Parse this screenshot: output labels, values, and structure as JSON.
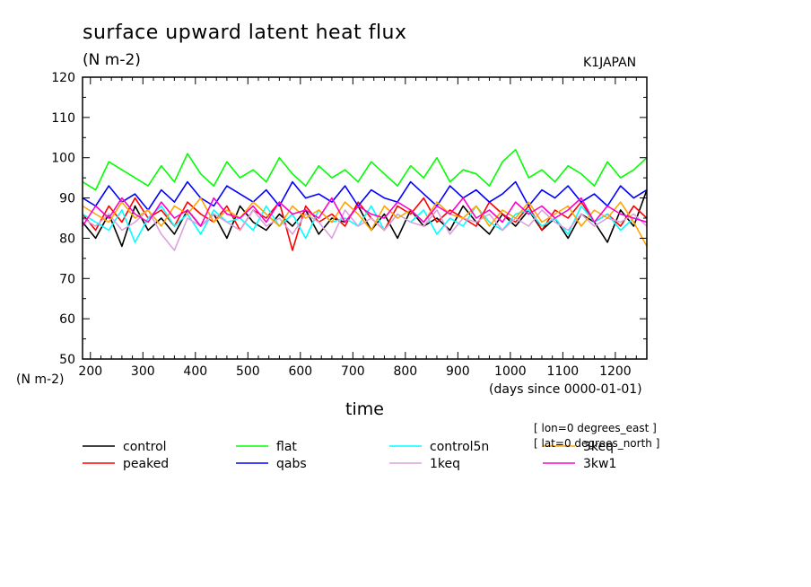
{
  "header": {
    "title": "surface upward latent heat flux",
    "units": "(N m-2)",
    "source": "K1JAPAN"
  },
  "footer": {
    "ylabel_bottom": "(N m-2)",
    "x_units": "(days since 0000-01-01)",
    "xlabel": "time",
    "coord_lon": "[ lon=0 degrees_east ]",
    "coord_lat": "[ lat=0 degrees_north ]"
  },
  "chart_data": {
    "type": "line",
    "title": "surface upward latent heat flux",
    "ylabel": "(N m-2)",
    "xlabel": "time",
    "xlim": [
      185,
      1260
    ],
    "ylim": [
      50,
      120
    ],
    "x_ticks": [
      200,
      300,
      400,
      500,
      600,
      700,
      800,
      900,
      1000,
      1100,
      1200
    ],
    "y_ticks": [
      50,
      60,
      70,
      80,
      90,
      100,
      110,
      120
    ],
    "x_tick_labels": [
      "200",
      "300",
      "400",
      "500",
      "600",
      "700",
      "800",
      "900",
      "1000",
      "1100",
      "1200"
    ],
    "y_tick_labels": [
      "50",
      "60",
      "70",
      "80",
      "90",
      "100",
      "110",
      "120"
    ],
    "grid": false,
    "legend_position": "bottom",
    "x": [
      185,
      210,
      235,
      260,
      285,
      310,
      335,
      360,
      385,
      410,
      435,
      460,
      485,
      510,
      535,
      560,
      585,
      610,
      635,
      660,
      685,
      710,
      735,
      760,
      785,
      810,
      835,
      860,
      885,
      910,
      935,
      960,
      985,
      1010,
      1035,
      1060,
      1085,
      1110,
      1135,
      1160,
      1185,
      1210,
      1235,
      1260
    ],
    "series": [
      {
        "name": "control",
        "color": "#000000",
        "values": [
          84,
          80,
          86,
          78,
          88,
          82,
          85,
          81,
          87,
          83,
          86,
          80,
          88,
          84,
          82,
          86,
          83,
          87,
          81,
          85,
          84,
          88,
          82,
          86,
          80,
          87,
          83,
          85,
          82,
          88,
          84,
          81,
          86,
          83,
          87,
          82,
          85,
          80,
          86,
          84,
          79,
          87,
          83,
          92
        ]
      },
      {
        "name": "peaked",
        "color": "#ff0000",
        "values": [
          86,
          82,
          88,
          84,
          90,
          85,
          87,
          83,
          89,
          86,
          84,
          88,
          82,
          87,
          85,
          89,
          77,
          88,
          84,
          86,
          83,
          89,
          85,
          82,
          88,
          86,
          90,
          84,
          87,
          85,
          83,
          89,
          86,
          84,
          88,
          82,
          87,
          85,
          89,
          84,
          86,
          83,
          88,
          85
        ]
      },
      {
        "name": "flat",
        "color": "#00ff00",
        "values": [
          94,
          92,
          99,
          97,
          95,
          93,
          98,
          94,
          101,
          96,
          93,
          99,
          95,
          97,
          94,
          100,
          96,
          93,
          98,
          95,
          97,
          94,
          99,
          96,
          93,
          98,
          95,
          100,
          94,
          97,
          96,
          93,
          99,
          102,
          95,
          97,
          94,
          98,
          96,
          93,
          99,
          95,
          97,
          100
        ]
      },
      {
        "name": "qabs",
        "color": "#0000ff",
        "values": [
          90,
          88,
          93,
          89,
          91,
          87,
          92,
          89,
          94,
          90,
          88,
          93,
          91,
          89,
          92,
          88,
          94,
          90,
          91,
          89,
          93,
          88,
          92,
          90,
          89,
          94,
          91,
          88,
          93,
          90,
          92,
          89,
          91,
          94,
          88,
          92,
          90,
          93,
          89,
          91,
          88,
          93,
          90,
          92
        ]
      },
      {
        "name": "control5n",
        "color": "#00ffff",
        "values": [
          86,
          84,
          82,
          87,
          79,
          85,
          88,
          83,
          86,
          81,
          87,
          84,
          85,
          82,
          88,
          83,
          86,
          80,
          87,
          84,
          85,
          83,
          88,
          82,
          86,
          84,
          87,
          81,
          85,
          83,
          88,
          84,
          82,
          86,
          87,
          83,
          85,
          81,
          88,
          84,
          86,
          82,
          85,
          84
        ]
      },
      {
        "name": "1keq",
        "color": "#dda0dd",
        "values": [
          85,
          83,
          86,
          82,
          84,
          87,
          81,
          77,
          85,
          83,
          86,
          84,
          82,
          87,
          83,
          85,
          81,
          86,
          84,
          80,
          87,
          83,
          85,
          82,
          86,
          84,
          83,
          87,
          81,
          85,
          84,
          86,
          82,
          85,
          83,
          87,
          84,
          82,
          86,
          83,
          85,
          84,
          86,
          83
        ]
      },
      {
        "name": "3keq",
        "color": "#ffa500",
        "values": [
          88,
          86,
          84,
          89,
          85,
          87,
          83,
          88,
          86,
          90,
          84,
          87,
          85,
          89,
          86,
          83,
          88,
          85,
          87,
          84,
          89,
          86,
          82,
          88,
          85,
          87,
          84,
          89,
          86,
          85,
          88,
          83,
          87,
          85,
          89,
          84,
          86,
          88,
          83,
          87,
          85,
          89,
          84,
          78
        ]
      },
      {
        "name": "3kw1",
        "color": "#ff00cc",
        "values": [
          83,
          88,
          85,
          90,
          86,
          84,
          89,
          85,
          87,
          83,
          90,
          86,
          85,
          88,
          84,
          89,
          86,
          87,
          85,
          90,
          84,
          88,
          86,
          85,
          89,
          87,
          84,
          88,
          86,
          90,
          85,
          87,
          84,
          89,
          86,
          88,
          85,
          87,
          90,
          84,
          88,
          86,
          85,
          84
        ]
      }
    ]
  }
}
